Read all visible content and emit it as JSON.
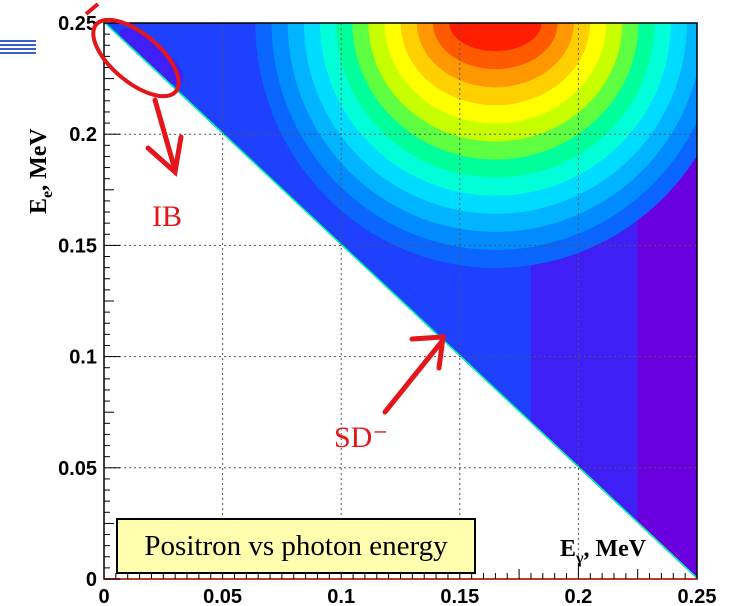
{
  "chart_data": {
    "type": "heatmap",
    "title": "",
    "xlabel": "E",
    "xlabel_sub": "γ",
    "xlabel_unit": ", MeV",
    "ylabel": "E",
    "ylabel_sub": "e",
    "ylabel_unit": ", MeV",
    "xlim": [
      0,
      0.25
    ],
    "ylim": [
      0,
      0.25
    ],
    "x_ticks": [
      {
        "value": 0,
        "label": "0"
      },
      {
        "value": 0.05,
        "label": "0.05"
      },
      {
        "value": 0.1,
        "label": "0.1"
      },
      {
        "value": 0.15,
        "label": "0.15"
      },
      {
        "value": 0.2,
        "label": "0.2"
      },
      {
        "value": 0.25,
        "label": "0.25"
      }
    ],
    "y_ticks": [
      {
        "value": 0,
        "label": "0"
      },
      {
        "value": 0.05,
        "label": "0.05"
      },
      {
        "value": 0.1,
        "label": "0.1"
      },
      {
        "value": 0.15,
        "label": "0.15"
      },
      {
        "value": 0.2,
        "label": "0.2"
      },
      {
        "value": 0.25,
        "label": "0.25"
      }
    ],
    "grid": true,
    "kinematic_boundary": [
      [
        0,
        0.25
      ],
      [
        0.25,
        0
      ]
    ],
    "colormap": [
      "#6a00e0",
      "#3f1ff5",
      "#1e40ff",
      "#0a66ff",
      "#008cff",
      "#00b4ff",
      "#00dcff",
      "#00ffd8",
      "#00ff9a",
      "#5dff40",
      "#c8ff00",
      "#ffff00",
      "#ffd000",
      "#ff9800",
      "#ff5a00",
      "#ff1e00"
    ],
    "peak": {
      "x": 0.165,
      "y": 0.25
    },
    "annotations": [
      {
        "text": "IB",
        "target": {
          "x": 0.015,
          "y": 0.235
        }
      },
      {
        "text": "SD⁻",
        "target": {
          "x": 0.14,
          "y": 0.11
        }
      }
    ]
  },
  "caption": "Positron vs photon energy",
  "colors": {
    "annotation": "#e4161b",
    "caption_bg": "#ffffb0",
    "axis": "#000000",
    "frame_accent": "#c0392b"
  }
}
